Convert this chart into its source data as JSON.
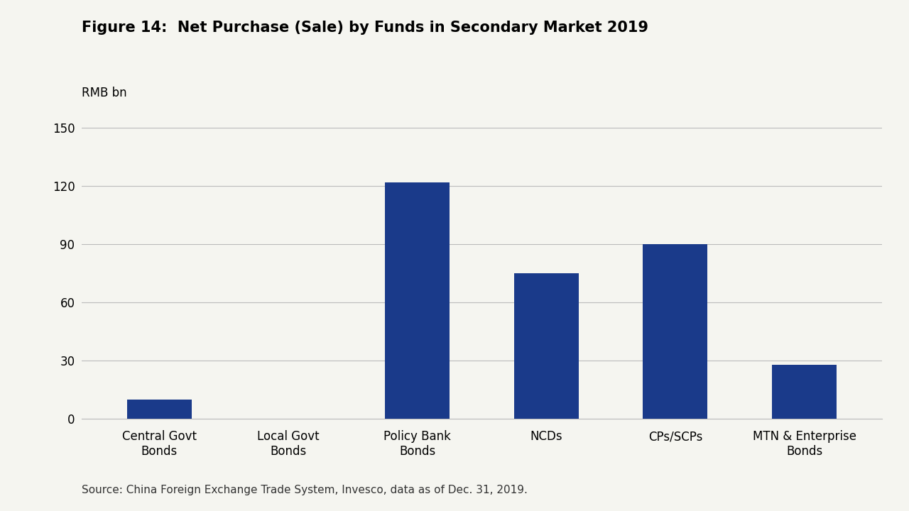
{
  "title": "Figure 14:  Net Purchase (Sale) by Funds in Secondary Market 2019",
  "ylabel": "RMB bn",
  "categories": [
    "Central Govt\nBonds",
    "Local Govt\nBonds",
    "Policy Bank\nBonds",
    "NCDs",
    "CPs/SCPs",
    "MTN & Enterprise\nBonds"
  ],
  "values": [
    10,
    0,
    122,
    75,
    90,
    28
  ],
  "bar_color": "#1a3a8a",
  "background_color": "#f5f5f0",
  "yticks": [
    0,
    30,
    60,
    90,
    120,
    150
  ],
  "ylim": [
    0,
    158
  ],
  "source_text": "Source: China Foreign Exchange Trade System, Invesco, data as of Dec. 31, 2019.",
  "title_fontsize": 15,
  "label_fontsize": 12,
  "tick_fontsize": 12,
  "source_fontsize": 11
}
